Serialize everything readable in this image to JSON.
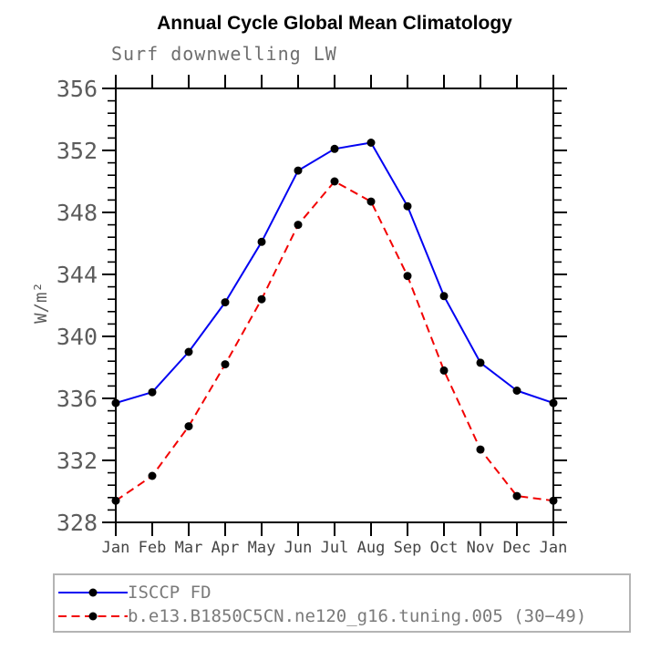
{
  "page": {
    "title": "Annual Cycle Global Mean Climatology",
    "subtitle": "Surf downwelling LW"
  },
  "chart_data": {
    "type": "line",
    "title": "Annual Cycle Global Mean Climatology",
    "subtitle": "Surf downwelling LW",
    "xlabel": "",
    "ylabel": "W/m²",
    "x_categories": [
      "Jan",
      "Feb",
      "Mar",
      "Apr",
      "May",
      "Jun",
      "Jul",
      "Aug",
      "Sep",
      "Oct",
      "Nov",
      "Dec",
      "Jan"
    ],
    "ylim": [
      328,
      356
    ],
    "ytick_step": 4,
    "ytick_labels": [
      "328",
      "332",
      "336",
      "340",
      "344",
      "348",
      "352",
      "356"
    ],
    "yminor_per_major": 4,
    "grid": false,
    "legend_position": "bottom-left-box",
    "axis_color": "#000000",
    "tick_label_color": "#5c5c5c",
    "month_label_color": "#444444",
    "series": [
      {
        "name": "ISCCP FD",
        "color": "#0202f2",
        "style": "solid",
        "marker": "filled-circle",
        "marker_color": "#000000",
        "values": [
          335.7,
          336.4,
          339.0,
          342.2,
          346.1,
          350.7,
          352.1,
          352.5,
          348.4,
          342.6,
          338.3,
          336.5,
          335.7
        ]
      },
      {
        "name": "b.e13.B1850C5CN.ne120_g16.tuning.005 (30−49)",
        "color": "#f20202",
        "style": "dashed",
        "marker": "filled-circle",
        "marker_color": "#000000",
        "values": [
          329.4,
          331.0,
          334.2,
          338.2,
          342.4,
          347.2,
          350.0,
          348.7,
          343.9,
          337.8,
          332.7,
          329.7,
          329.4
        ]
      }
    ]
  }
}
